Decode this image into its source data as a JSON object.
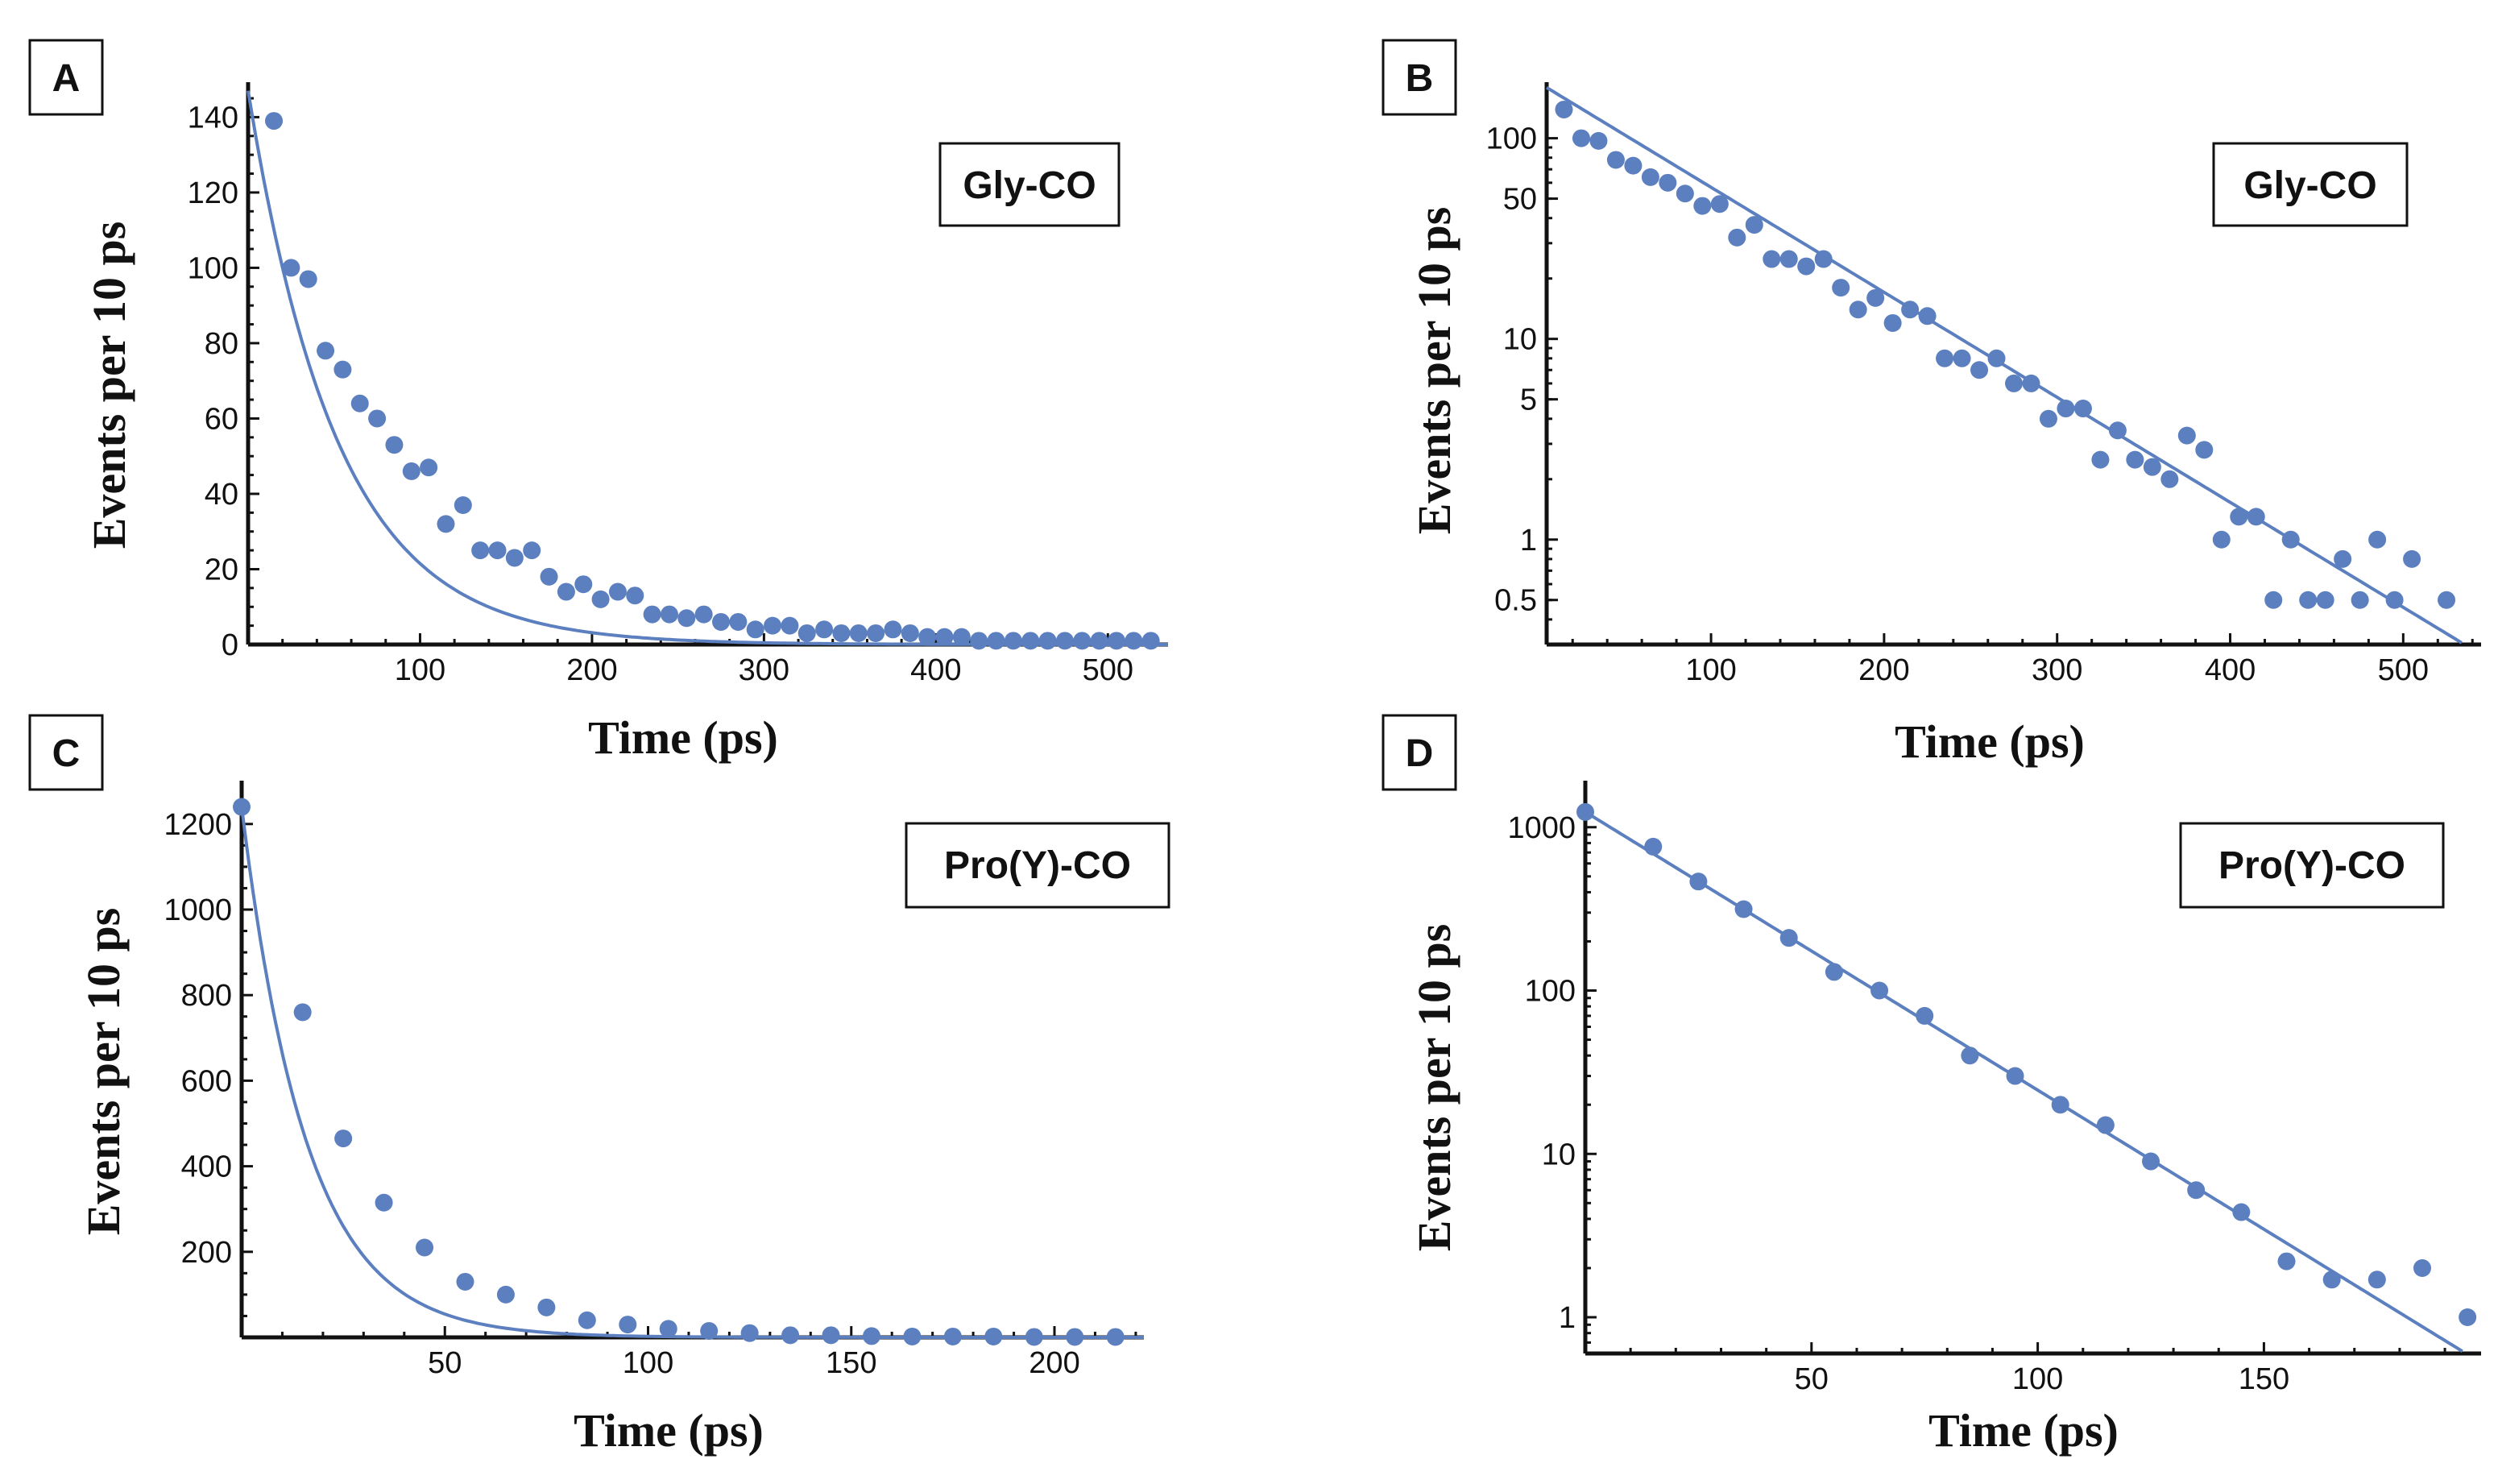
{
  "colors": {
    "series": "#5b7fbf",
    "axis": "#111111",
    "background": "#ffffff"
  },
  "chart_data": [
    {
      "panel": "A",
      "type": "scatter",
      "scale": "linear",
      "legend": "Gly-CO",
      "legend_position": "top-right",
      "xlabel": "Time (ps)",
      "ylabel": "Events per 10 ps",
      "xlim": [
        0,
        535
      ],
      "ylim": [
        0,
        148
      ],
      "xticks": [
        100,
        200,
        300,
        400,
        500
      ],
      "yticks": [
        0,
        20,
        40,
        60,
        80,
        100,
        120,
        140
      ],
      "fit": {
        "amplitude": 147,
        "tau": 52
      },
      "x": [
        15,
        25,
        35,
        45,
        55,
        65,
        75,
        85,
        95,
        105,
        115,
        125,
        135,
        145,
        155,
        165,
        175,
        185,
        195,
        205,
        215,
        225,
        235,
        245,
        255,
        265,
        275,
        285,
        295,
        305,
        315,
        325,
        335,
        345,
        355,
        365,
        375,
        385,
        395,
        405,
        415,
        425,
        435,
        445,
        455,
        465,
        475,
        485,
        495,
        505,
        515,
        525
      ],
      "y": [
        139,
        100,
        97,
        78,
        73,
        64,
        60,
        53,
        46,
        47,
        32,
        37,
        25,
        25,
        23,
        25,
        18,
        14,
        16,
        12,
        14,
        13,
        8,
        8,
        7,
        8,
        6,
        6,
        4,
        5,
        5,
        3,
        4,
        3,
        3,
        3,
        4,
        3,
        2,
        2,
        2,
        1,
        1,
        1,
        1,
        1,
        1,
        1,
        1,
        1,
        1,
        1
      ]
    },
    {
      "panel": "B",
      "type": "scatter",
      "scale": "log",
      "legend": "Gly-CO",
      "legend_position": "top-right",
      "xlabel": "Time (ps)",
      "ylabel": "Events per 10 ps",
      "xlim": [
        5,
        545
      ],
      "ylim": [
        0.3,
        180
      ],
      "xticks": [
        100,
        200,
        300,
        400,
        500
      ],
      "yticks": [
        0.5,
        1,
        5,
        10,
        50,
        100
      ],
      "ytick_labels": [
        "0.5",
        "1",
        "5",
        "10",
        "50",
        "100"
      ],
      "fit": {
        "amplitude": 190,
        "tau": 83
      },
      "x": [
        15,
        25,
        35,
        45,
        55,
        65,
        75,
        85,
        95,
        105,
        115,
        125,
        135,
        145,
        155,
        165,
        175,
        185,
        195,
        205,
        215,
        225,
        235,
        245,
        255,
        265,
        275,
        285,
        295,
        305,
        315,
        325,
        335,
        345,
        355,
        365,
        375,
        385,
        395,
        405,
        415,
        425,
        435,
        445,
        455,
        465,
        475,
        485,
        495,
        505,
        525
      ],
      "y": [
        139,
        100,
        97,
        78,
        73,
        64,
        60,
        53,
        46,
        47,
        32,
        37,
        25,
        25,
        23,
        25,
        18,
        14,
        16,
        12,
        14,
        13,
        8,
        8,
        7,
        8,
        6,
        6,
        4,
        4.5,
        4.5,
        2.5,
        3.5,
        2.5,
        2.3,
        2,
        3.3,
        2.8,
        1,
        1.3,
        1.3,
        0.5,
        1,
        0.5,
        0.5,
        0.8,
        0.5,
        1,
        0.5,
        0.8,
        0.5
      ]
    },
    {
      "panel": "C",
      "type": "scatter",
      "scale": "linear",
      "legend": "Pro(Y)-CO",
      "legend_position": "top-right",
      "xlabel": "Time (ps)",
      "ylabel": "Events per 10 ps",
      "xlim": [
        0,
        222
      ],
      "ylim": [
        0,
        1290
      ],
      "xticks": [
        50,
        100,
        150,
        200
      ],
      "yticks": [
        200,
        400,
        600,
        800,
        1000,
        1200
      ],
      "fit": {
        "amplitude": 1240,
        "tau": 16
      },
      "x": [
        0,
        15,
        25,
        35,
        45,
        55,
        65,
        75,
        85,
        95,
        105,
        115,
        125,
        135,
        145,
        155,
        165,
        175,
        185,
        195,
        205,
        215
      ],
      "y": [
        1240,
        760,
        465,
        315,
        210,
        130,
        100,
        70,
        40,
        30,
        20,
        15,
        10,
        5,
        5,
        3,
        2,
        2,
        2,
        1,
        1,
        1
      ]
    },
    {
      "panel": "D",
      "type": "scatter",
      "scale": "log",
      "legend": "Pro(Y)-CO",
      "legend_position": "top-right",
      "xlabel": "Time (ps)",
      "ylabel": "Events per 10 ps",
      "xlim": [
        0,
        198
      ],
      "ylim": [
        0.6,
        1800
      ],
      "xticks": [
        50,
        100,
        150
      ],
      "yticks": [
        1,
        10,
        100,
        1000
      ],
      "ytick_labels": [
        "1",
        "10",
        "100",
        "1000"
      ],
      "fit": {
        "amplitude": 1240,
        "tau": 25.5
      },
      "x": [
        0,
        15,
        25,
        35,
        45,
        55,
        65,
        75,
        85,
        95,
        105,
        115,
        125,
        135,
        145,
        155,
        165,
        175,
        185,
        195
      ],
      "y": [
        1240,
        760,
        465,
        315,
        210,
        130,
        100,
        70,
        40,
        30,
        20,
        15,
        9,
        6,
        4.4,
        2.2,
        1.7,
        1.7,
        2,
        1
      ]
    }
  ]
}
